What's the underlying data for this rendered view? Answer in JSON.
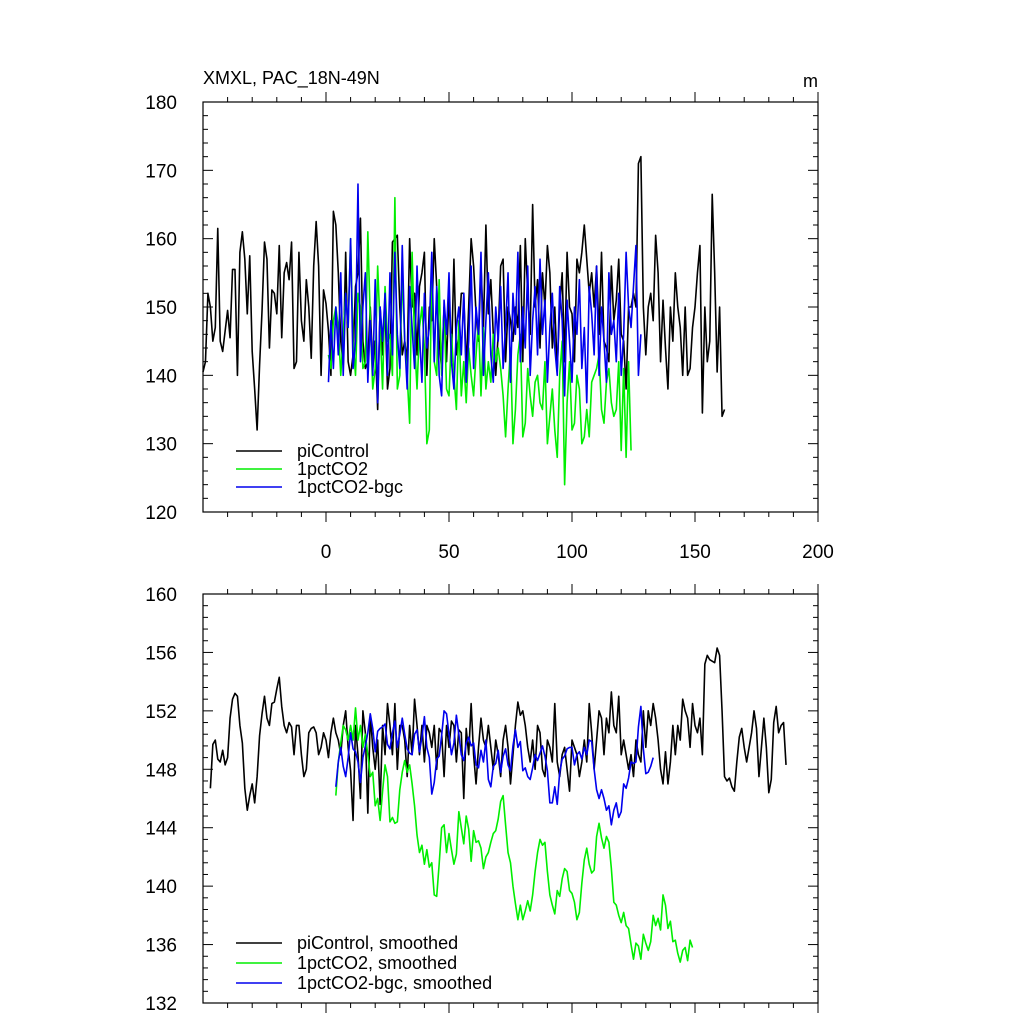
{
  "chart_data": [
    {
      "type": "line",
      "title": "XMXL, PAC_18N-49N",
      "units_label": "m",
      "xlabel": "",
      "ylabel": "",
      "xlim": [
        -50,
        200
      ],
      "ylim": [
        120,
        180
      ],
      "xticks": [
        0,
        50,
        100,
        150,
        200
      ],
      "yticks": [
        120,
        130,
        140,
        150,
        160,
        170,
        180
      ],
      "legend_position": "bottom-left",
      "series": [
        {
          "name": "piControl",
          "color": "#000000",
          "x_start": -50,
          "values": [
            140.5,
            142,
            152,
            150,
            145,
            147,
            161.5,
            145,
            143.5,
            146.5,
            149.5,
            145.5,
            155.5,
            155.5,
            140,
            158,
            161,
            157,
            149,
            157.5,
            143.5,
            138,
            132,
            141.5,
            149.5,
            159.5,
            157,
            144,
            152.5,
            152,
            149,
            159,
            145.5,
            155,
            156.5,
            154,
            159.5,
            141,
            142,
            158,
            148,
            145,
            154,
            150,
            142.5,
            156,
            162.5,
            156,
            140,
            152.5,
            150.5,
            146.5,
            140,
            164,
            162,
            155,
            145,
            141.5,
            158,
            142,
            140,
            143,
            153,
            155,
            163,
            145,
            141,
            142,
            150,
            141,
            145,
            135,
            150,
            143,
            150,
            138,
            141,
            159.5,
            160,
            160.5,
            150,
            143,
            145,
            142,
            160,
            150,
            152,
            143,
            153,
            155,
            158,
            140,
            150,
            148,
            160,
            153,
            145,
            141,
            150,
            142,
            152,
            142,
            157,
            143,
            146,
            152,
            152,
            141,
            150,
            160,
            156,
            149,
            145,
            156,
            147,
            162,
            149,
            154,
            146,
            140,
            146,
            156,
            157,
            142,
            150,
            148,
            145,
            150,
            147,
            159,
            142,
            160,
            152,
            146,
            165,
            150,
            154,
            144,
            155,
            150,
            159,
            155,
            144,
            150,
            141,
            150,
            155,
            142,
            158,
            150,
            149,
            142,
            157,
            155,
            158,
            162,
            157,
            152,
            155,
            150,
            156,
            146,
            158,
            145,
            144,
            142,
            156,
            148,
            151,
            157,
            146,
            145,
            138,
            150,
            150,
            152,
            150,
            171,
            172,
            150,
            143,
            150,
            152,
            148,
            160.5,
            155,
            142,
            151,
            144,
            138,
            150,
            145,
            155,
            150,
            147,
            140,
            150,
            140,
            141,
            147,
            150,
            155,
            159,
            134.5,
            150,
            142,
            145,
            166.5,
            155,
            140.5,
            150,
            134,
            135
          ]
        },
        {
          "name": "1pctCO2",
          "color": "#00ee00",
          "x_start": 1,
          "values": [
            143,
            141,
            148,
            150,
            147,
            140,
            146,
            152,
            147,
            160,
            145,
            140,
            152,
            150,
            141,
            142,
            161,
            148,
            138,
            141,
            156,
            147,
            138,
            153,
            145,
            146,
            140,
            166,
            138,
            140,
            155,
            145,
            140,
            133,
            158,
            145,
            138,
            147,
            150,
            144,
            130,
            132,
            156,
            142,
            140,
            154,
            140,
            150,
            138,
            137,
            146,
            140,
            135,
            148,
            137,
            142,
            136,
            144,
            140,
            137,
            143,
            148,
            137,
            147,
            138,
            142,
            139,
            146,
            142,
            144,
            141,
            137,
            131,
            138,
            144,
            130,
            135,
            143,
            146,
            131,
            133,
            141,
            137,
            134,
            139,
            140,
            136,
            135,
            142,
            130,
            134,
            138,
            132,
            128,
            140,
            145,
            124,
            136,
            142,
            132,
            133,
            140,
            138,
            130,
            131,
            135,
            131,
            139,
            140,
            141,
            143,
            135,
            133,
            139,
            141,
            136,
            134,
            135,
            142,
            129,
            141,
            128,
            142,
            129
          ]
        },
        {
          "name": "1pctCO2-bgc",
          "color": "#0000ee",
          "x_start": 1,
          "values": [
            139,
            148,
            141,
            150,
            143,
            155,
            140,
            152,
            147,
            160,
            141,
            145,
            168,
            142,
            150,
            155,
            139,
            148,
            140,
            154,
            136,
            150,
            145,
            152,
            140,
            155,
            143,
            158,
            146,
            141,
            159,
            145,
            138,
            153,
            147,
            141,
            156,
            146,
            139,
            152,
            144,
            147,
            158,
            142,
            153,
            140,
            137,
            151,
            146,
            155,
            142,
            138,
            147,
            150,
            143,
            152,
            139,
            145,
            156,
            141,
            150,
            146,
            158,
            140,
            148,
            155,
            143,
            139,
            150,
            145,
            153,
            141,
            147,
            155,
            139,
            152,
            146,
            158,
            142,
            150,
            144,
            156,
            140,
            148,
            153,
            143,
            157,
            146,
            151,
            139,
            147,
            152,
            144,
            140,
            153,
            148,
            137,
            151,
            145,
            139,
            150,
            146,
            154,
            141,
            147,
            136,
            153,
            149,
            143,
            156,
            140,
            150,
            145,
            139,
            155,
            146,
            148,
            142,
            152,
            140,
            146,
            158,
            150,
            147,
            153,
            159,
            140,
            146
          ]
        }
      ]
    },
    {
      "type": "line",
      "title": "",
      "xlabel": "",
      "ylabel": "",
      "xlim": [
        -50,
        200
      ],
      "ylim": [
        132,
        160
      ],
      "yticks": [
        132,
        136,
        140,
        144,
        148,
        152,
        156,
        160
      ],
      "legend_position": "bottom-left",
      "series": [
        {
          "name": "piControl, smoothed",
          "color": "#000000",
          "x_start": -47,
          "values": [
            146.7,
            149.7,
            150,
            148.7,
            148.5,
            149.3,
            148.3,
            148.8,
            151.5,
            152.8,
            153.2,
            153,
            151,
            149.8,
            146.7,
            145.2,
            146.2,
            147,
            145.7,
            147.5,
            150.3,
            151.8,
            153,
            151.5,
            151,
            152.5,
            152.6,
            153.5,
            154.3,
            152.3,
            151,
            150.5,
            151.2,
            150.9,
            149,
            151,
            151,
            149,
            147.5,
            148,
            150.5,
            150.8,
            150.9,
            150.5,
            149,
            149.5,
            150.5,
            150,
            148.8,
            150.5,
            151.5,
            150.5,
            150,
            149,
            151,
            152,
            149.5,
            147.9,
            144.5,
            151,
            149,
            146,
            152,
            150.5,
            145,
            151.7,
            149.5,
            148,
            150,
            145.6,
            151,
            149,
            152.5,
            151,
            149,
            152.5,
            148,
            151,
            151,
            150,
            147.5,
            151,
            149,
            152.8,
            151,
            149,
            151,
            148.5,
            151,
            150.5,
            149.5,
            151,
            148,
            150.8,
            150.5,
            147.5,
            151,
            149.5,
            151.3,
            151,
            148.5,
            150.7,
            150.5,
            146,
            150.8,
            149,
            152.5,
            149,
            147,
            149.5,
            151.5,
            150,
            149.5,
            151,
            149.5,
            148,
            150,
            149,
            147.5,
            150,
            151,
            149.5,
            147,
            149,
            151,
            152.6,
            151.7,
            152,
            151,
            149.5,
            148.5,
            150,
            148,
            151,
            150.5,
            148,
            147.5,
            150,
            149.5,
            148.5,
            152.5,
            148.5,
            147.5,
            149,
            149.5,
            148,
            146.5,
            150,
            149.5,
            149,
            147.5,
            148.5,
            150,
            148.5,
            152.5,
            150.5,
            148,
            150,
            152,
            151.5,
            149,
            151.5,
            150.5,
            153.3,
            151,
            150.5,
            153,
            149,
            150,
            149,
            148,
            149,
            147.5,
            150,
            149,
            148.5,
            152,
            149.5,
            152,
            151,
            152.5,
            151.5,
            150,
            148,
            147,
            149.2,
            147,
            148.5,
            151,
            149,
            151,
            150,
            152.8,
            152,
            151.5,
            149.5,
            152.5,
            151,
            150.5,
            151.5,
            149,
            155.2,
            155.8,
            155.5,
            155.4,
            155.3,
            156.3,
            155.8,
            152,
            147.5,
            147.2,
            147.4,
            146.8,
            146.5,
            148.5,
            150.2,
            150.8,
            149.5,
            148.5,
            149.5,
            150.5,
            152,
            150.8,
            147.5,
            149.5,
            151.5,
            149.5,
            146.4,
            147.3,
            151.2,
            152.3,
            150.5,
            151,
            151.2,
            148.3
          ]
        },
        {
          "name": "1pctCO2, smoothed",
          "color": "#00ee00",
          "x_start": 4,
          "values": [
            146.2,
            148.5,
            149.8,
            151,
            150.7,
            150,
            151,
            150,
            152.2,
            150,
            151,
            149.5,
            150.4,
            149,
            147.5,
            147.8,
            145.5,
            146,
            144.5,
            146.5,
            148.3,
            147.5,
            144.4,
            144.7,
            144.3,
            144.4,
            146.6,
            147.8,
            148.6,
            147.8,
            148.3,
            147,
            145.5,
            143.5,
            142.3,
            142.8,
            141.5,
            142.5,
            141.3,
            141.6,
            139.4,
            139.3,
            141.5,
            144,
            144.2,
            142.3,
            143.6,
            142.5,
            141.5,
            142.2,
            145.1,
            144,
            142.9,
            144.8,
            143.9,
            141.7,
            143.8,
            143,
            143.1,
            142.6,
            141.2,
            142,
            142.3,
            143,
            143.6,
            143.8,
            144.6,
            145.8,
            146.2,
            144.2,
            142.3,
            141.6,
            140,
            138.8,
            137.7,
            138.7,
            137.7,
            138.3,
            139,
            138.3,
            139.4,
            141,
            142.3,
            143.2,
            142.8,
            143,
            141,
            139.4,
            138.7,
            138.1,
            139.7,
            139.3,
            140.5,
            141.2,
            141,
            139.7,
            139.5,
            138.9,
            137.7,
            138.2,
            140.2,
            141.8,
            142.6,
            141.5,
            140.9,
            141.1,
            143.4,
            144.3,
            143.3,
            142.6,
            143.4,
            143,
            141.2,
            138.9,
            138.7,
            138,
            137.5,
            138.2,
            137.3,
            137.1,
            136,
            135,
            136.1,
            135.9,
            135,
            136.7,
            136.1,
            135.6,
            136.2,
            138,
            137.3,
            137.8,
            137,
            139.4,
            138.7,
            137.1,
            137.6,
            136.2,
            136.3,
            135.4,
            134.8,
            135.6,
            135.8,
            134.9,
            136.3,
            135.8
          ]
        },
        {
          "name": "1pctCO2-bgc, smoothed",
          "color": "#0000ee",
          "x_start": 4,
          "values": [
            146.8,
            148.5,
            149.5,
            148.2,
            147.5,
            148.8,
            150.5,
            149.4,
            149.2,
            148.5,
            147.1,
            148.8,
            149.6,
            150.5,
            151.8,
            150.8,
            149.2,
            150.6,
            150.8,
            150.9,
            151.1,
            149.7,
            149.4,
            150.5,
            151.3,
            149.5,
            150.4,
            151.5,
            150.4,
            149.4,
            149.1,
            149,
            150.4,
            150.7,
            149.2,
            150.2,
            151.6,
            149.5,
            148.8,
            146.3,
            147.1,
            148.7,
            148.9,
            150.3,
            152,
            151.8,
            150.4,
            149,
            149.8,
            151.7,
            150.4,
            149,
            148.6,
            149.8,
            150.2,
            149.6,
            149.8,
            148.3,
            148.1,
            149.3,
            148.5,
            150,
            147.3,
            146.8,
            148.2,
            148.4,
            149.3,
            147.8,
            148.9,
            149.4,
            148.3,
            147.9,
            149.6,
            150.7,
            149.5,
            149.9,
            147.9,
            148.1,
            147.5,
            147.3,
            148.1,
            149,
            148.6,
            149.1,
            149.6,
            148.9,
            147.9,
            145.7,
            145.7,
            146.8,
            145.6,
            147.8,
            148.7,
            148.9,
            149.4,
            149.5,
            149.5,
            148.3,
            149,
            149.2,
            148.7,
            149.5,
            149,
            150,
            149.9,
            148,
            146.6,
            146,
            146.6,
            146,
            145.2,
            145.5,
            144.2,
            145.2,
            145.7,
            144.7,
            145.1,
            147,
            146.7,
            147.4,
            148.5,
            148.4,
            148.5,
            150.9,
            152.3,
            149.4,
            147.7,
            147.8,
            148.2,
            148.8
          ]
        }
      ]
    }
  ]
}
